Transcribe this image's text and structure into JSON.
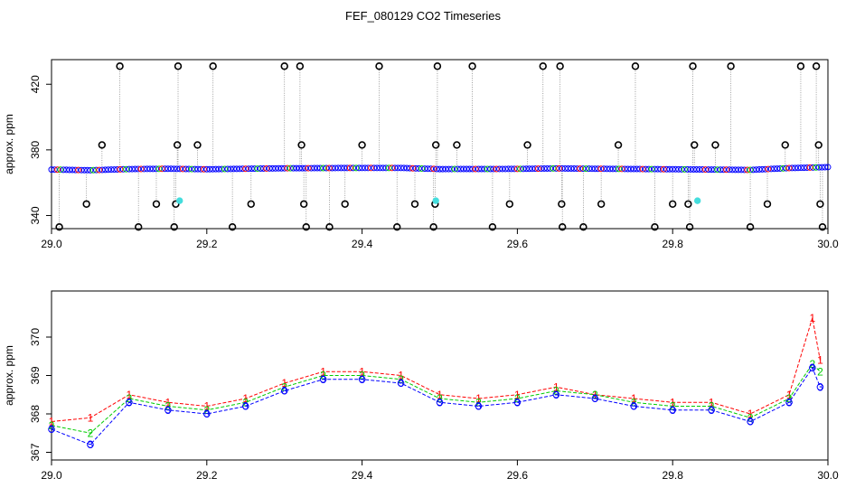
{
  "title": "FEF_080129  CO2 Timeseries",
  "colors": {
    "series1": "#ff0000",
    "series2": "#00cc00",
    "series3": "#0000ff",
    "outlier": "#000000",
    "flagged": "#44dddd",
    "droplines": "#888888"
  },
  "chart_data": [
    {
      "type": "scatter",
      "title": "",
      "xlabel": "",
      "ylabel": "approx. ppm",
      "xlim": [
        29.0,
        30.0
      ],
      "ylim": [
        332,
        435
      ],
      "x_ticks": [
        "29.0",
        "29.2",
        "29.4",
        "29.6",
        "29.8",
        "30.0"
      ],
      "y_ticks": [
        "340",
        "380",
        "420"
      ],
      "x_tick_values": [
        29.0,
        29.2,
        29.4,
        29.6,
        29.8,
        30.0
      ],
      "y_tick_values": [
        340,
        380,
        420
      ],
      "baseline": [
        [
          29.0,
          368.0
        ],
        [
          29.05,
          367.6
        ],
        [
          29.1,
          368.3
        ],
        [
          29.15,
          368.5
        ],
        [
          29.2,
          368.2
        ],
        [
          29.25,
          368.5
        ],
        [
          29.3,
          368.8
        ],
        [
          29.35,
          368.9
        ],
        [
          29.4,
          369.0
        ],
        [
          29.45,
          369.0
        ],
        [
          29.5,
          368.3
        ],
        [
          29.6,
          368.4
        ],
        [
          29.65,
          368.7
        ],
        [
          29.7,
          368.5
        ],
        [
          29.8,
          368.2
        ],
        [
          29.9,
          367.8
        ],
        [
          29.95,
          368.9
        ],
        [
          30.0,
          369.5
        ]
      ],
      "outliers": [
        {
          "x": 29.01,
          "y": 333
        },
        {
          "x": 29.045,
          "y": 347
        },
        {
          "x": 29.065,
          "y": 383
        },
        {
          "x": 29.088,
          "y": 431
        },
        {
          "x": 29.112,
          "y": 333
        },
        {
          "x": 29.135,
          "y": 347
        },
        {
          "x": 29.158,
          "y": 333
        },
        {
          "x": 29.16,
          "y": 347
        },
        {
          "x": 29.162,
          "y": 383
        },
        {
          "x": 29.163,
          "y": 431
        },
        {
          "x": 29.188,
          "y": 383
        },
        {
          "x": 29.208,
          "y": 431
        },
        {
          "x": 29.233,
          "y": 333
        },
        {
          "x": 29.257,
          "y": 347
        },
        {
          "x": 29.3,
          "y": 431
        },
        {
          "x": 29.32,
          "y": 431
        },
        {
          "x": 29.322,
          "y": 383
        },
        {
          "x": 29.325,
          "y": 347
        },
        {
          "x": 29.328,
          "y": 333
        },
        {
          "x": 29.358,
          "y": 333
        },
        {
          "x": 29.378,
          "y": 347
        },
        {
          "x": 29.4,
          "y": 383
        },
        {
          "x": 29.422,
          "y": 431
        },
        {
          "x": 29.445,
          "y": 333
        },
        {
          "x": 29.468,
          "y": 347
        },
        {
          "x": 29.492,
          "y": 333
        },
        {
          "x": 29.494,
          "y": 347
        },
        {
          "x": 29.495,
          "y": 383
        },
        {
          "x": 29.497,
          "y": 431
        },
        {
          "x": 29.522,
          "y": 383
        },
        {
          "x": 29.542,
          "y": 431
        },
        {
          "x": 29.568,
          "y": 333
        },
        {
          "x": 29.59,
          "y": 347
        },
        {
          "x": 29.613,
          "y": 383
        },
        {
          "x": 29.633,
          "y": 431
        },
        {
          "x": 29.655,
          "y": 431
        },
        {
          "x": 29.657,
          "y": 347
        },
        {
          "x": 29.658,
          "y": 333
        },
        {
          "x": 29.685,
          "y": 333
        },
        {
          "x": 29.708,
          "y": 347
        },
        {
          "x": 29.73,
          "y": 383
        },
        {
          "x": 29.752,
          "y": 431
        },
        {
          "x": 29.777,
          "y": 333
        },
        {
          "x": 29.8,
          "y": 347
        },
        {
          "x": 29.82,
          "y": 347
        },
        {
          "x": 29.822,
          "y": 333
        },
        {
          "x": 29.826,
          "y": 431
        },
        {
          "x": 29.828,
          "y": 383
        },
        {
          "x": 29.855,
          "y": 383
        },
        {
          "x": 29.875,
          "y": 431
        },
        {
          "x": 29.9,
          "y": 333
        },
        {
          "x": 29.922,
          "y": 347
        },
        {
          "x": 29.945,
          "y": 383
        },
        {
          "x": 29.965,
          "y": 431
        },
        {
          "x": 29.985,
          "y": 431
        },
        {
          "x": 29.988,
          "y": 383
        },
        {
          "x": 29.99,
          "y": 347
        },
        {
          "x": 29.993,
          "y": 333
        }
      ],
      "flagged": [
        {
          "x": 29.165,
          "y": 349
        },
        {
          "x": 29.495,
          "y": 349
        },
        {
          "x": 29.832,
          "y": 349
        }
      ]
    },
    {
      "type": "scatter",
      "title": "",
      "xlabel": "",
      "ylabel": "approx. ppm",
      "xlim": [
        29.0,
        30.0
      ],
      "ylim": [
        366.8,
        371.2
      ],
      "x_ticks": [
        "29.0",
        "29.2",
        "29.4",
        "29.6",
        "29.8",
        "30.0"
      ],
      "y_ticks": [
        "367",
        "368",
        "369",
        "370"
      ],
      "x_tick_values": [
        29.0,
        29.2,
        29.4,
        29.6,
        29.8,
        30.0
      ],
      "y_tick_values": [
        367,
        368,
        369,
        370
      ],
      "series": [
        {
          "name": "1",
          "marker": "1",
          "x": [
            29.0,
            29.05,
            29.1,
            29.15,
            29.2,
            29.25,
            29.3,
            29.35,
            29.4,
            29.45,
            29.5,
            29.55,
            29.6,
            29.65,
            29.7,
            29.75,
            29.8,
            29.85,
            29.9,
            29.95,
            29.98,
            29.99
          ],
          "y": [
            367.8,
            367.9,
            368.5,
            368.3,
            368.2,
            368.4,
            368.8,
            369.1,
            369.1,
            369.0,
            368.5,
            368.4,
            368.5,
            368.7,
            368.5,
            368.4,
            368.3,
            368.3,
            368.0,
            368.5,
            370.5,
            369.4
          ]
        },
        {
          "name": "2",
          "marker": "2",
          "x": [
            29.0,
            29.05,
            29.1,
            29.15,
            29.2,
            29.25,
            29.3,
            29.35,
            29.4,
            29.45,
            29.5,
            29.55,
            29.6,
            29.65,
            29.7,
            29.75,
            29.8,
            29.85,
            29.9,
            29.95,
            29.98,
            29.99
          ],
          "y": [
            367.7,
            367.5,
            368.4,
            368.2,
            368.1,
            368.3,
            368.7,
            369.0,
            369.0,
            368.9,
            368.4,
            368.3,
            368.4,
            368.6,
            368.5,
            368.3,
            368.2,
            368.2,
            367.9,
            368.4,
            369.3,
            369.1
          ]
        },
        {
          "name": "3",
          "marker": "3",
          "x": [
            29.0,
            29.05,
            29.1,
            29.15,
            29.2,
            29.25,
            29.3,
            29.35,
            29.4,
            29.45,
            29.5,
            29.55,
            29.6,
            29.65,
            29.7,
            29.75,
            29.8,
            29.85,
            29.9,
            29.95,
            29.98,
            29.99
          ],
          "y": [
            367.6,
            367.2,
            368.3,
            368.1,
            368.0,
            368.2,
            368.6,
            368.9,
            368.9,
            368.8,
            368.3,
            368.2,
            368.3,
            368.5,
            368.4,
            368.2,
            368.1,
            368.1,
            367.8,
            368.3,
            369.2,
            368.7
          ]
        }
      ]
    }
  ]
}
